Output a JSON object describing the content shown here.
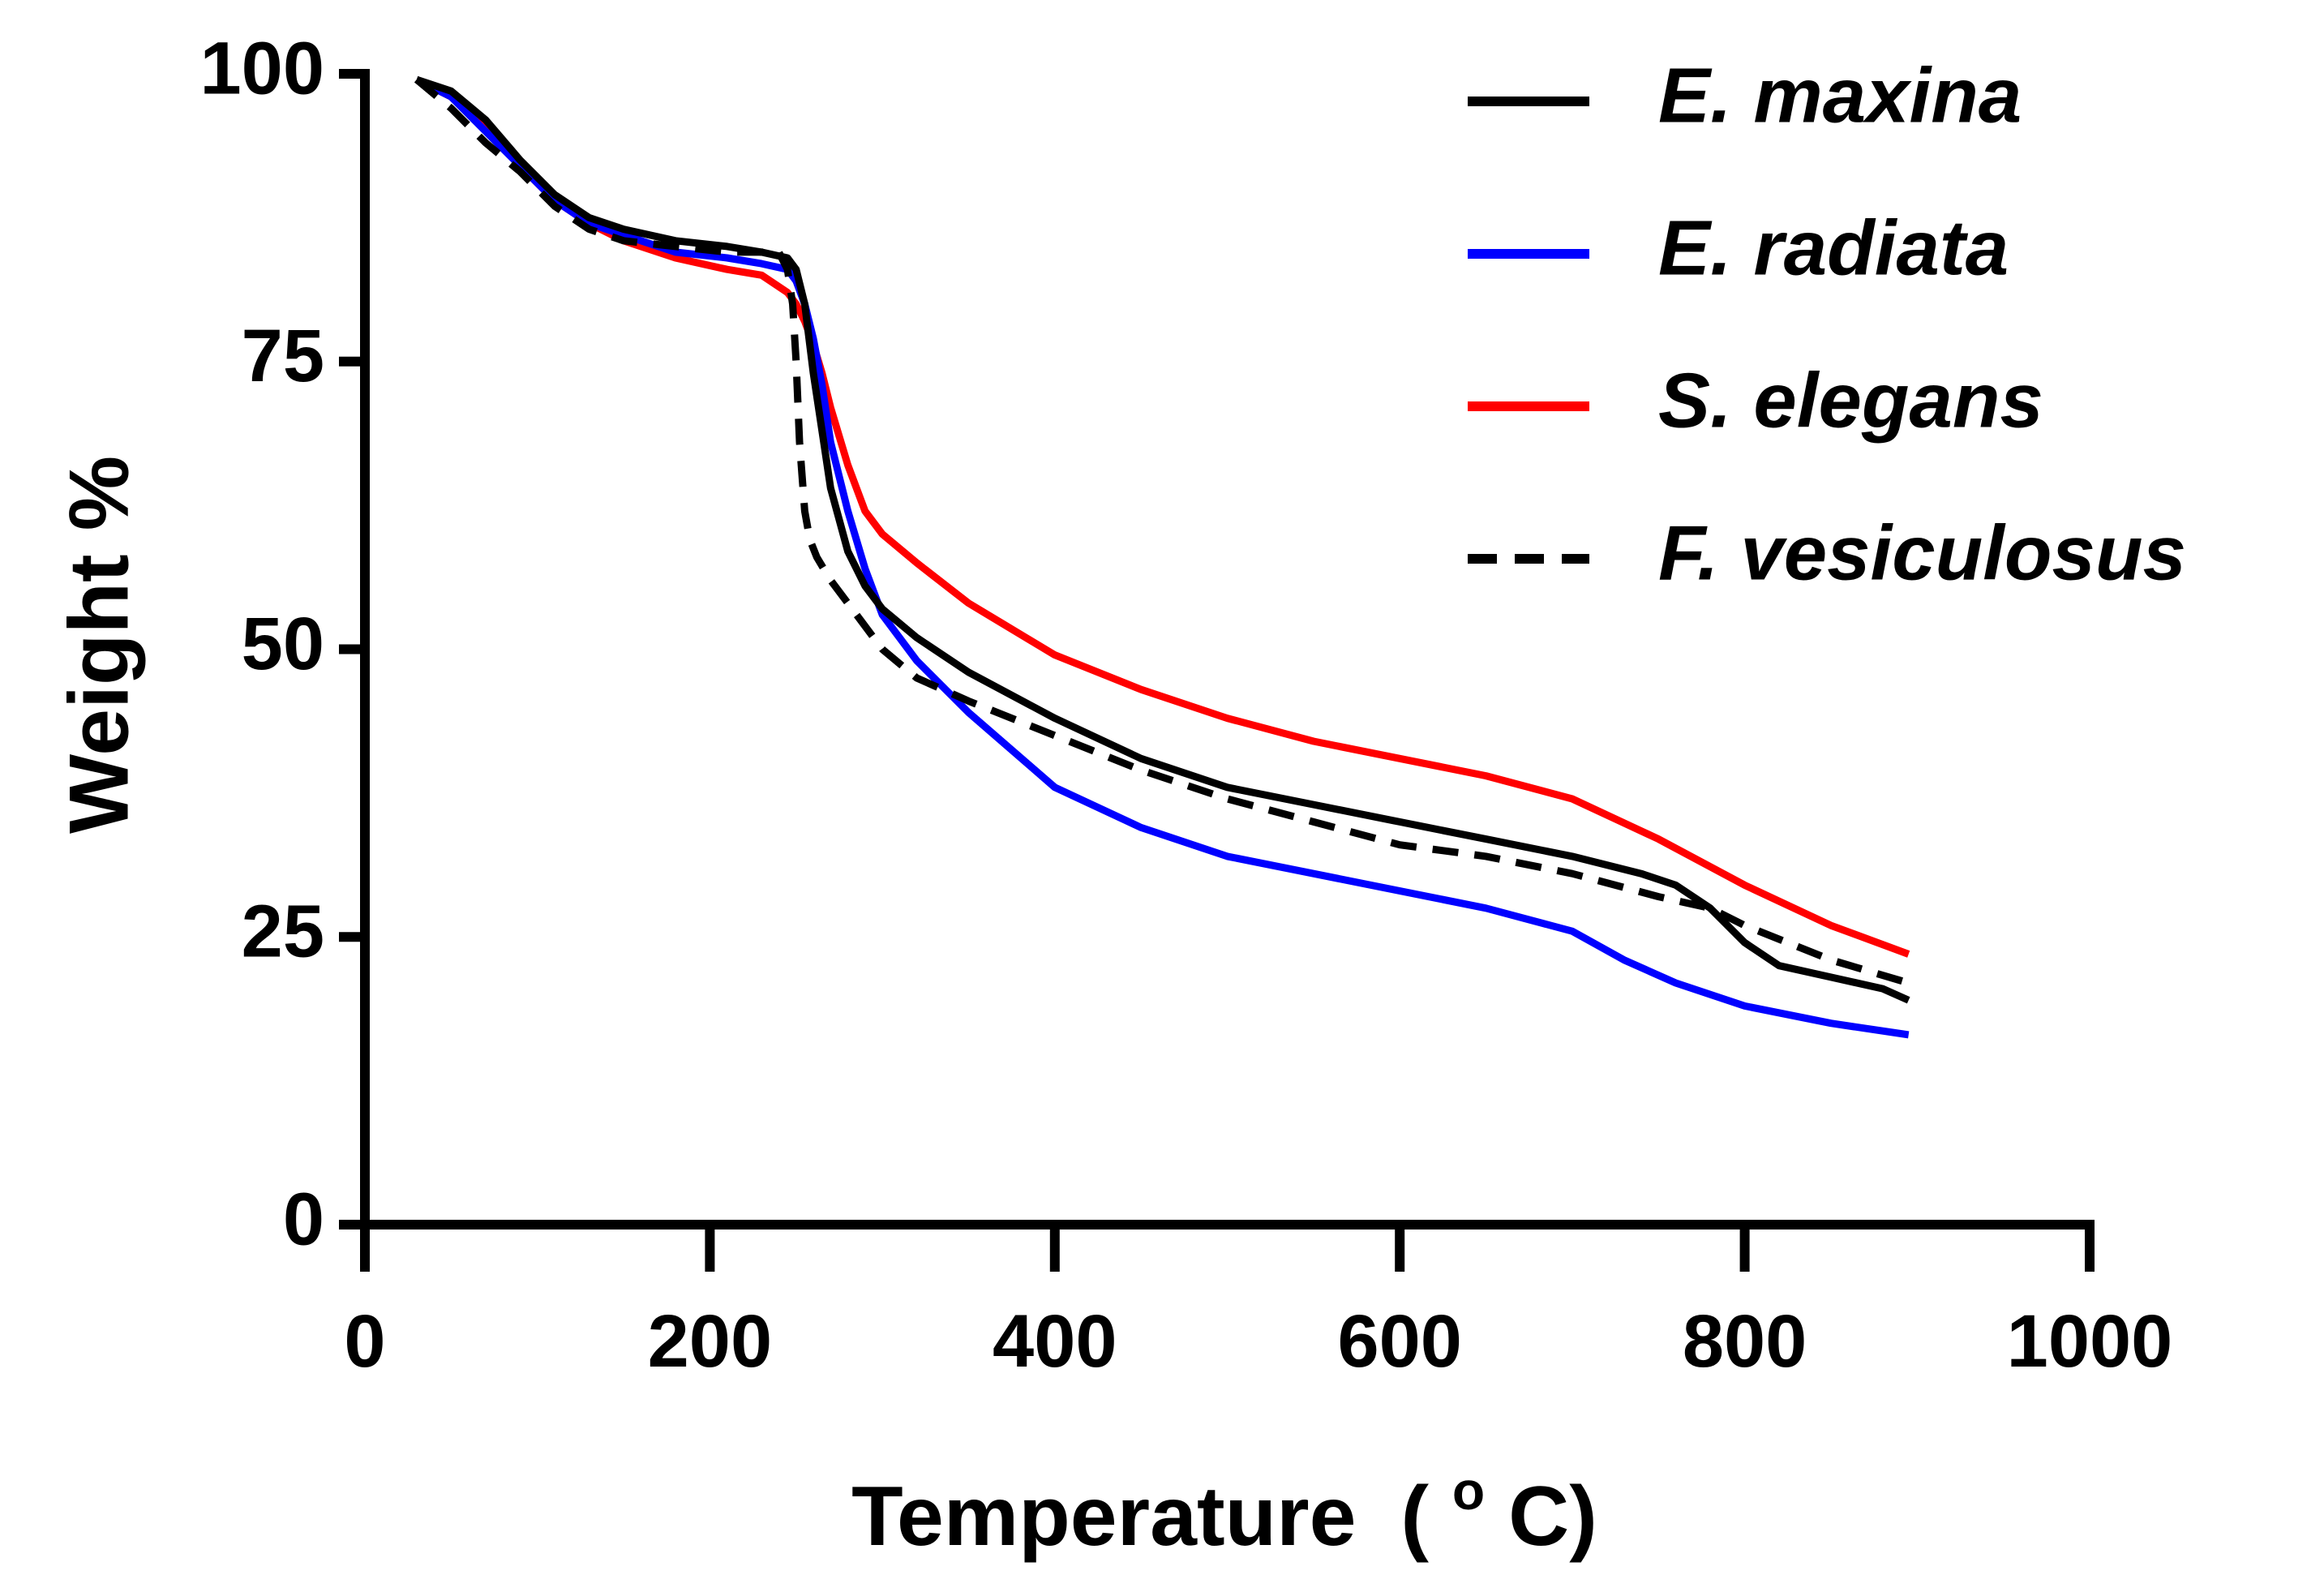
{
  "chart_data": {
    "type": "line",
    "title": "",
    "xlabel": "Temperature",
    "xlabel_unit_prefix": "(",
    "xlabel_unit_sup": "o",
    "xlabel_unit_suffix": "C)",
    "ylabel": "Weight %",
    "xlim": [
      0,
      1000
    ],
    "ylim": [
      0,
      100
    ],
    "xticks": [
      0,
      200,
      400,
      600,
      800,
      1000
    ],
    "yticks": [
      0,
      25,
      50,
      75,
      100
    ],
    "legend_position": "top-right",
    "grid": false,
    "series": [
      {
        "name": "E. maxina",
        "color": "#000000",
        "dash": "solid",
        "x": [
          30,
          50,
          70,
          90,
          110,
          130,
          150,
          180,
          210,
          230,
          245,
          250,
          255,
          260,
          265,
          270,
          280,
          290,
          300,
          320,
          350,
          400,
          450,
          500,
          550,
          600,
          650,
          700,
          740,
          760,
          780,
          800,
          820,
          850,
          880,
          895
        ],
        "y": [
          99.5,
          98.5,
          96,
          92.5,
          89.5,
          87.5,
          86.5,
          85.5,
          85,
          84.5,
          84,
          83,
          80,
          74,
          69,
          64,
          58.5,
          55.5,
          53.5,
          51,
          48,
          44,
          40.5,
          38,
          36.5,
          35,
          33.5,
          32,
          30.5,
          29.5,
          27.5,
          24.5,
          22.5,
          21.5,
          20.5,
          19.5
        ]
      },
      {
        "name": "E. radiata",
        "color": "#0000ff",
        "dash": "solid",
        "x": [
          30,
          50,
          70,
          90,
          110,
          130,
          150,
          180,
          210,
          230,
          245,
          250,
          255,
          260,
          265,
          270,
          280,
          290,
          300,
          320,
          350,
          400,
          450,
          500,
          550,
          600,
          650,
          700,
          730,
          760,
          800,
          850,
          895
        ],
        "y": [
          99.5,
          98,
          95,
          92,
          89,
          87,
          86,
          84.5,
          84,
          83.5,
          83,
          82,
          80,
          77,
          73,
          68,
          62,
          57,
          53,
          49,
          44.5,
          38,
          34.5,
          32,
          30.5,
          29,
          27.5,
          25.5,
          23,
          21,
          19,
          17.5,
          16.5
        ]
      },
      {
        "name": "S. elegans",
        "color": "#ff0000",
        "dash": "solid",
        "x": [
          30,
          50,
          70,
          90,
          110,
          130,
          150,
          180,
          210,
          230,
          245,
          250,
          255,
          260,
          265,
          270,
          280,
          290,
          300,
          320,
          350,
          400,
          450,
          500,
          550,
          600,
          650,
          700,
          750,
          800,
          850,
          895
        ],
        "y": [
          99.5,
          98,
          95.5,
          92,
          89,
          87,
          85.5,
          84,
          83,
          82.5,
          81,
          80,
          78.5,
          76.5,
          74,
          71,
          66,
          62,
          60,
          57.5,
          54,
          49.5,
          46.5,
          44,
          42,
          40.5,
          39,
          37,
          33.5,
          29.5,
          26,
          23.5
        ]
      },
      {
        "name": "F. vesiculosus",
        "color": "#000000",
        "dash": "dashed",
        "x": [
          30,
          50,
          70,
          90,
          110,
          130,
          150,
          180,
          210,
          230,
          240,
          245,
          248,
          250,
          252,
          255,
          258,
          262,
          270,
          280,
          300,
          320,
          350,
          400,
          450,
          500,
          550,
          600,
          650,
          700,
          750,
          780,
          800,
          850,
          895
        ],
        "y": [
          99.5,
          97,
          94,
          91.5,
          88.5,
          86.5,
          85.5,
          85,
          84.5,
          84.5,
          84.5,
          83,
          80,
          75,
          68,
          62,
          59.5,
          58,
          56,
          54,
          50,
          47.5,
          45.5,
          42.5,
          39.5,
          37,
          35,
          33,
          32,
          30.5,
          28.5,
          27.5,
          26,
          23,
          21
        ]
      }
    ]
  }
}
